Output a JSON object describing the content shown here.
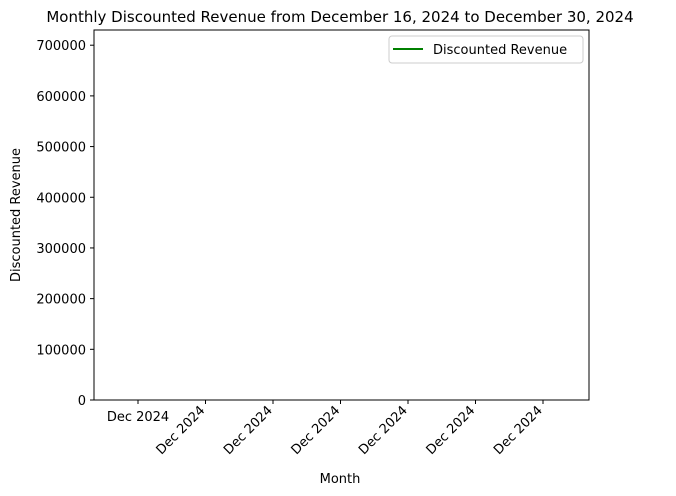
{
  "chart_data": {
    "type": "line",
    "title": "Monthly Discounted Revenue from December 16, 2024 to December 30, 2024",
    "xlabel": "Month",
    "ylabel": "Discounted Revenue",
    "ylim": [
      0,
      730000
    ],
    "yticks": [
      0,
      100000,
      200000,
      300000,
      400000,
      500000,
      600000,
      700000
    ],
    "xticks": [
      "Dec 2024",
      "Dec 2024",
      "Dec 2024",
      "Dec 2024",
      "Dec 2024",
      "Dec 2024",
      "Dec 2024"
    ],
    "grid": false,
    "legend": {
      "placement": "top-right",
      "entries": [
        "Discounted Revenue"
      ]
    },
    "series": [
      {
        "name": "Discounted Revenue",
        "color": "#008000",
        "values": []
      }
    ]
  }
}
